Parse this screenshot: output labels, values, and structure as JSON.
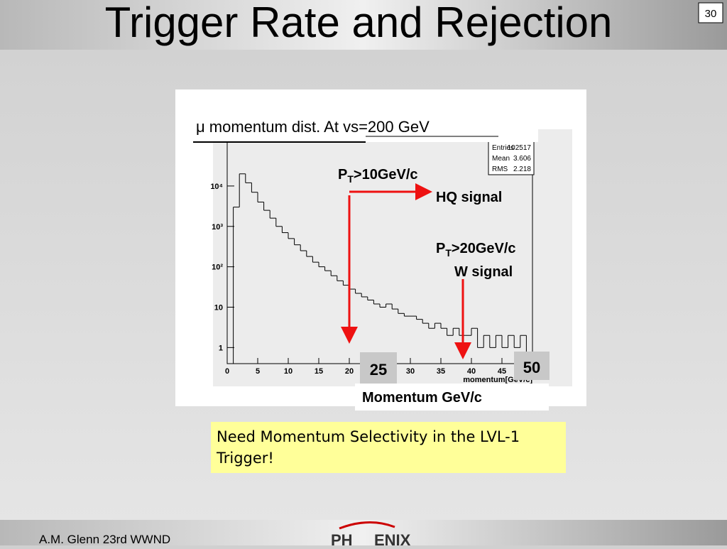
{
  "slide": {
    "title": "Trigger Rate and Rejection",
    "page_number": "30",
    "note": "Need Momentum Selectivity in the LVL-1 Trigger!",
    "footer": "A.M. Glenn 23rd WWND",
    "logo_left": "PH",
    "logo_right": "ENIX",
    "annotations": {
      "heading": "μ momentum dist. At vs=200 GeV",
      "pt10_p": "P",
      "pt10_sub": "T",
      "pt10_rest": ">10GeV/c",
      "hq": "HQ signal",
      "pt20_p": "P",
      "pt20_sub": "T",
      "pt20_rest": ">20GeV/c",
      "w": "W signal",
      "box25": "25",
      "box50": "50",
      "momentum": "Momentum GeV/c"
    }
  },
  "chart_data": {
    "type": "histogram",
    "x_label": "momentum[GeV/c]",
    "stats": {
      "labels": [
        "Entries",
        "Mean",
        "RMS"
      ],
      "values": [
        "102517",
        "3.606",
        "2.218"
      ]
    },
    "bins": [
      0,
      1,
      2,
      3,
      4,
      5,
      6,
      7,
      8,
      9,
      10,
      11,
      12,
      13,
      14,
      15,
      16,
      17,
      18,
      19,
      20,
      21,
      22,
      23,
      24,
      25,
      26,
      27,
      28,
      29,
      30,
      31,
      32,
      33,
      34,
      35,
      36,
      37,
      38,
      39,
      40,
      41,
      42,
      43,
      44,
      45,
      46,
      47,
      48,
      49,
      50
    ],
    "values": [
      0,
      3000,
      20000,
      12000,
      7000,
      4000,
      2500,
      1600,
      1000,
      700,
      500,
      350,
      250,
      180,
      130,
      100,
      80,
      60,
      45,
      35,
      28,
      22,
      18,
      15,
      12,
      10,
      12,
      9,
      7,
      6,
      6,
      5,
      4,
      3,
      4,
      3,
      2,
      3,
      2,
      2,
      3,
      1,
      2,
      1,
      2,
      1,
      2,
      1,
      2,
      0
    ],
    "color": "#000000",
    "log_y": true,
    "xlim": [
      0,
      50
    ],
    "xticks": [
      0,
      5,
      10,
      15,
      20,
      25,
      30,
      35,
      40,
      45
    ],
    "ylim": [
      0.4,
      150000
    ],
    "yticks": [
      1,
      10,
      {
        "value": 100,
        "label": "10²"
      },
      {
        "value": 1000,
        "label": "10³"
      },
      {
        "value": 10000,
        "label": "10⁴"
      }
    ]
  }
}
